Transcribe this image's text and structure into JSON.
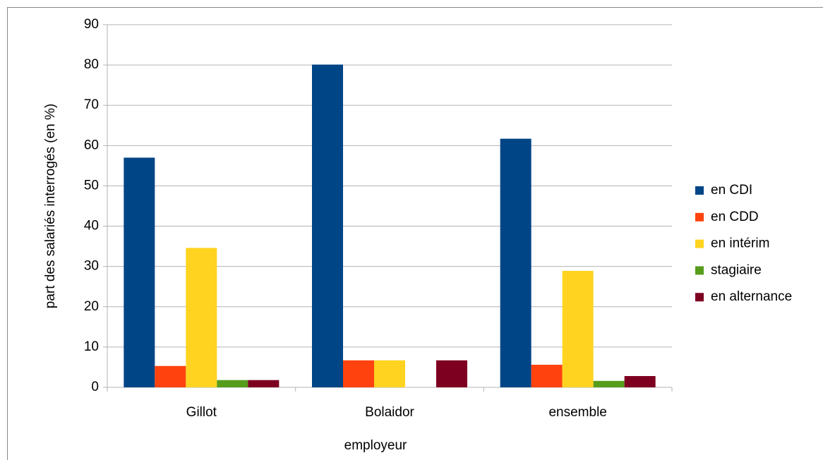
{
  "chart_data": {
    "type": "bar",
    "x_label": "employeur",
    "y_label": "part des salariés interrogés (en %)",
    "categories": [
      "Gillot",
      "Bolaidor",
      "ensemble"
    ],
    "series": [
      {
        "name": "en CDI",
        "color": "#004586",
        "values": [
          57,
          80.1,
          61.7
        ]
      },
      {
        "name": "en CDD",
        "color": "#ff420e",
        "values": [
          5.3,
          6.7,
          5.6
        ]
      },
      {
        "name": "en intérim",
        "color": "#ffd320",
        "values": [
          34.6,
          6.7,
          28.9
        ]
      },
      {
        "name": "stagiaire",
        "color": "#579d1c",
        "values": [
          1.8,
          0,
          1.6
        ]
      },
      {
        "name": "en alternance",
        "color": "#7e0021",
        "values": [
          1.8,
          6.7,
          2.8
        ]
      }
    ],
    "ylim": [
      0,
      90
    ],
    "yticks": [
      0,
      10,
      20,
      30,
      40,
      50,
      60,
      70,
      80,
      90
    ],
    "grid": true,
    "legend": "right"
  }
}
